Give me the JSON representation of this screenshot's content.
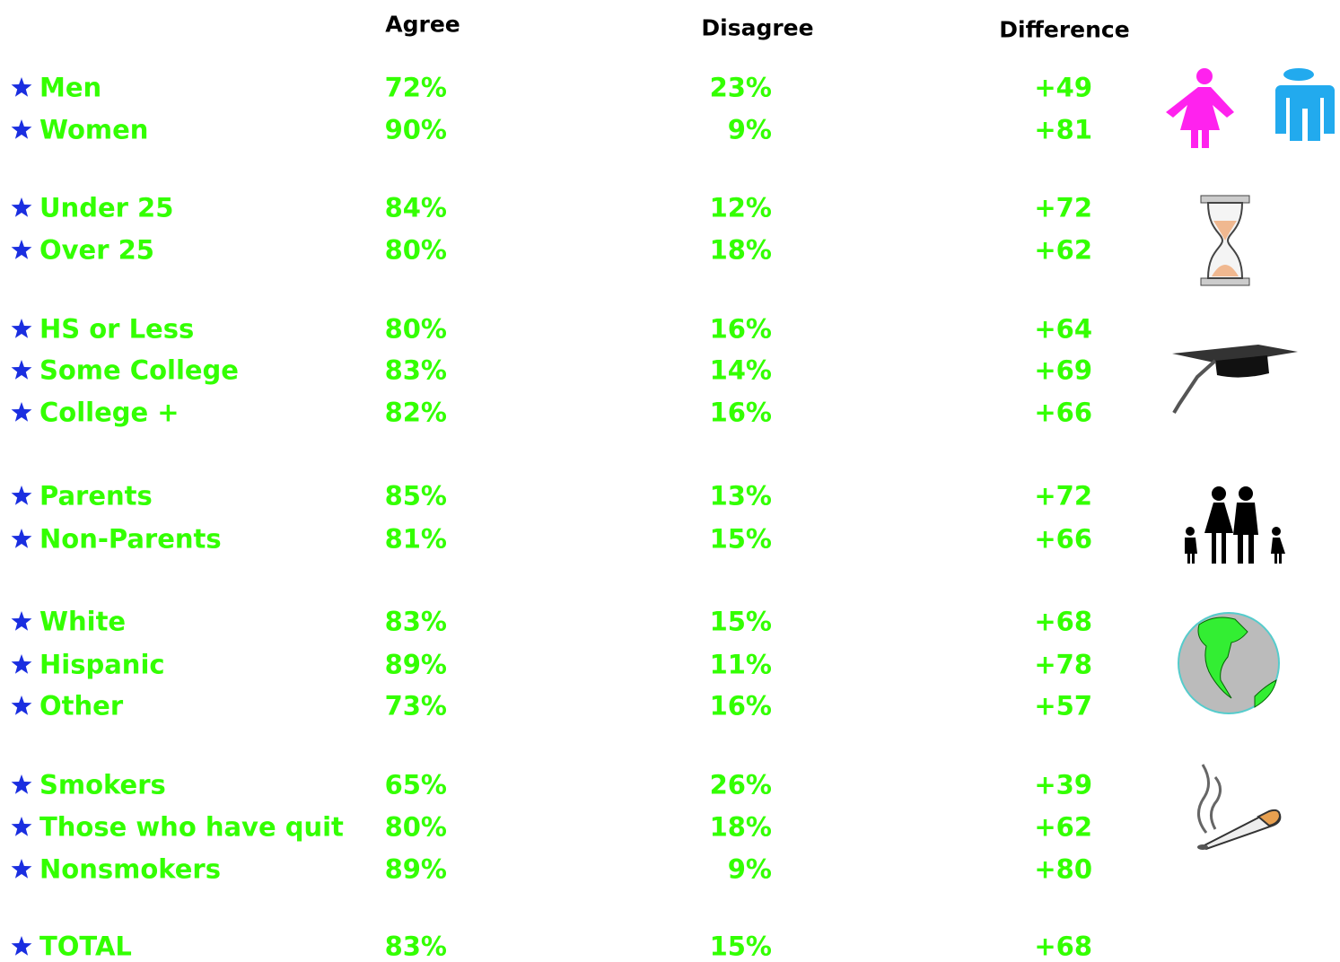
{
  "header": {
    "agree": "Agree",
    "disagree": "Disagree",
    "difference": "Difference"
  },
  "groups": [
    {
      "rows": [
        {
          "label": "Men",
          "agree": "72%",
          "disagree": "23%",
          "difference": "+49"
        },
        {
          "label": "Women",
          "agree": "90%",
          "disagree": "9%",
          "difference": "+81"
        }
      ]
    },
    {
      "rows": [
        {
          "label": "Under 25",
          "agree": "84%",
          "disagree": "12%",
          "difference": "+72"
        },
        {
          "label": "Over 25",
          "agree": "80%",
          "disagree": "18%",
          "difference": "+62"
        }
      ]
    },
    {
      "rows": [
        {
          "label": "HS or Less",
          "agree": "80%",
          "disagree": "16%",
          "difference": "+64"
        },
        {
          "label": "Some College",
          "agree": "83%",
          "disagree": "14%",
          "difference": "+69"
        },
        {
          "label": "College +",
          "agree": "82%",
          "disagree": "16%",
          "difference": "+66"
        }
      ]
    },
    {
      "rows": [
        {
          "label": "Parents",
          "agree": "85%",
          "disagree": "13%",
          "difference": "+72"
        },
        {
          "label": "Non-Parents",
          "agree": "81%",
          "disagree": "15%",
          "difference": "+66"
        }
      ]
    },
    {
      "rows": [
        {
          "label": "White",
          "agree": "83%",
          "disagree": "15%",
          "difference": "+68"
        },
        {
          "label": "Hispanic",
          "agree": "89%",
          "disagree": "11%",
          "difference": "+78"
        },
        {
          "label": "Other",
          "agree": "73%",
          "disagree": "16%",
          "difference": "+57"
        }
      ]
    },
    {
      "rows": [
        {
          "label": "Smokers",
          "agree": "65%",
          "disagree": "26%",
          "difference": "+39"
        },
        {
          "label": "Those who have quit",
          "agree": "80%",
          "disagree": "18%",
          "difference": "+62"
        },
        {
          "label": "Nonsmokers",
          "agree": "89%",
          "disagree": "9%",
          "difference": "+80"
        }
      ]
    },
    {
      "rows": [
        {
          "label": "TOTAL",
          "agree": "83%",
          "disagree": "15%",
          "difference": "+68"
        }
      ]
    }
  ]
}
